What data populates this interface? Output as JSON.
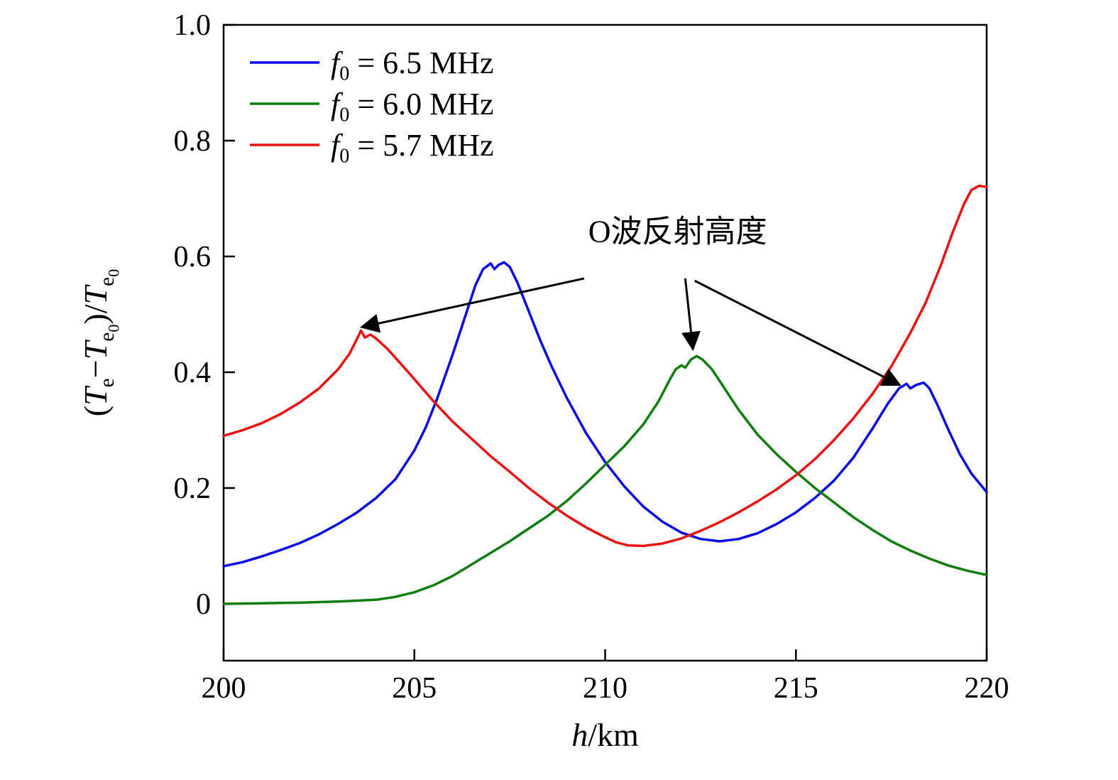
{
  "chart_data": {
    "type": "line",
    "title": "",
    "xlabel_parts": [
      {
        "text": "h",
        "kind": "italic"
      },
      {
        "text": "/km",
        "kind": "normal"
      }
    ],
    "ylabel_parts": [
      {
        "text": "(",
        "kind": "normal"
      },
      {
        "text": "T",
        "kind": "italic"
      },
      {
        "text": "e",
        "kind": "sub"
      },
      {
        "text": "−",
        "kind": "normal"
      },
      {
        "text": "T",
        "kind": "italic"
      },
      {
        "text": "e",
        "kind": "sub"
      },
      {
        "text": "0",
        "kind": "subsub"
      },
      {
        "text": ")/",
        "kind": "normal"
      },
      {
        "text": "T",
        "kind": "italic"
      },
      {
        "text": "e",
        "kind": "sub"
      },
      {
        "text": "0",
        "kind": "subsub"
      }
    ],
    "xlim": [
      200,
      220
    ],
    "ylim": [
      0,
      1.0
    ],
    "xticks": [
      200,
      205,
      210,
      215,
      220
    ],
    "xtick_labels": [
      "200",
      "205",
      "210",
      "215",
      "220"
    ],
    "yticks": [
      0,
      0.2,
      0.4,
      0.6,
      0.8,
      1.0
    ],
    "ytick_labels": [
      "0",
      "0.2",
      "0.4",
      "0.6",
      "0.8",
      "1.0"
    ],
    "grid": false,
    "legend_position": "top-left",
    "series": [
      {
        "name": "f0 = 6.5 MHz",
        "color": "#0a0ae6",
        "label_parts": [
          {
            "text": "f",
            "kind": "italic"
          },
          {
            "text": "0",
            "kind": "sub"
          },
          {
            "text": " = 6.5 MHz",
            "kind": "normal"
          }
        ],
        "points": [
          [
            200,
            0.065
          ],
          [
            200.5,
            0.072
          ],
          [
            201,
            0.082
          ],
          [
            201.5,
            0.093
          ],
          [
            202,
            0.105
          ],
          [
            202.5,
            0.12
          ],
          [
            203,
            0.138
          ],
          [
            203.5,
            0.158
          ],
          [
            204,
            0.183
          ],
          [
            204.5,
            0.215
          ],
          [
            205,
            0.265
          ],
          [
            205.3,
            0.305
          ],
          [
            205.6,
            0.355
          ],
          [
            206,
            0.43
          ],
          [
            206.3,
            0.49
          ],
          [
            206.6,
            0.55
          ],
          [
            206.8,
            0.578
          ],
          [
            207,
            0.588
          ],
          [
            207.1,
            0.578
          ],
          [
            207.2,
            0.585
          ],
          [
            207.35,
            0.59
          ],
          [
            207.5,
            0.582
          ],
          [
            207.7,
            0.555
          ],
          [
            208,
            0.505
          ],
          [
            208.3,
            0.455
          ],
          [
            208.6,
            0.41
          ],
          [
            209,
            0.355
          ],
          [
            209.5,
            0.295
          ],
          [
            210,
            0.245
          ],
          [
            210.5,
            0.203
          ],
          [
            211,
            0.168
          ],
          [
            211.5,
            0.142
          ],
          [
            212,
            0.123
          ],
          [
            212.5,
            0.112
          ],
          [
            213,
            0.108
          ],
          [
            213.5,
            0.112
          ],
          [
            214,
            0.122
          ],
          [
            214.5,
            0.138
          ],
          [
            215,
            0.158
          ],
          [
            215.5,
            0.183
          ],
          [
            216,
            0.213
          ],
          [
            216.5,
            0.252
          ],
          [
            217,
            0.302
          ],
          [
            217.4,
            0.345
          ],
          [
            217.7,
            0.372
          ],
          [
            217.9,
            0.38
          ],
          [
            218,
            0.372
          ],
          [
            218.15,
            0.378
          ],
          [
            218.35,
            0.382
          ],
          [
            218.5,
            0.372
          ],
          [
            218.7,
            0.345
          ],
          [
            219,
            0.3
          ],
          [
            219.3,
            0.258
          ],
          [
            219.6,
            0.225
          ],
          [
            220,
            0.193
          ]
        ]
      },
      {
        "name": "f0 = 6.0 MHz",
        "color": "#0f7d0f",
        "label_parts": [
          {
            "text": "f",
            "kind": "italic"
          },
          {
            "text": "0",
            "kind": "sub"
          },
          {
            "text": " = 6.0 MHz",
            "kind": "normal"
          }
        ],
        "points": [
          [
            200,
            0.0
          ],
          [
            201,
            0.001
          ],
          [
            202,
            0.002
          ],
          [
            203,
            0.004
          ],
          [
            204,
            0.007
          ],
          [
            204.5,
            0.012
          ],
          [
            205,
            0.02
          ],
          [
            205.5,
            0.032
          ],
          [
            206,
            0.048
          ],
          [
            206.5,
            0.068
          ],
          [
            207,
            0.088
          ],
          [
            207.5,
            0.108
          ],
          [
            208,
            0.13
          ],
          [
            208.5,
            0.152
          ],
          [
            209,
            0.178
          ],
          [
            209.5,
            0.208
          ],
          [
            210,
            0.24
          ],
          [
            210.5,
            0.272
          ],
          [
            211,
            0.31
          ],
          [
            211.4,
            0.35
          ],
          [
            211.7,
            0.388
          ],
          [
            211.85,
            0.405
          ],
          [
            212,
            0.412
          ],
          [
            212.1,
            0.408
          ],
          [
            212.25,
            0.422
          ],
          [
            212.4,
            0.428
          ],
          [
            212.55,
            0.422
          ],
          [
            212.8,
            0.405
          ],
          [
            213,
            0.385
          ],
          [
            213.5,
            0.335
          ],
          [
            214,
            0.292
          ],
          [
            214.5,
            0.258
          ],
          [
            215,
            0.228
          ],
          [
            215.5,
            0.2
          ],
          [
            216,
            0.175
          ],
          [
            216.5,
            0.15
          ],
          [
            217,
            0.128
          ],
          [
            217.5,
            0.108
          ],
          [
            218,
            0.092
          ],
          [
            218.5,
            0.078
          ],
          [
            219,
            0.066
          ],
          [
            219.5,
            0.057
          ],
          [
            220,
            0.05
          ]
        ]
      },
      {
        "name": "f0 = 5.7 MHz",
        "color": "#ee1111",
        "label_parts": [
          {
            "text": "f",
            "kind": "italic"
          },
          {
            "text": "0",
            "kind": "sub"
          },
          {
            "text": " = 5.7 MHz",
            "kind": "normal"
          }
        ],
        "points": [
          [
            200,
            0.29
          ],
          [
            200.5,
            0.3
          ],
          [
            201,
            0.312
          ],
          [
            201.5,
            0.328
          ],
          [
            202,
            0.348
          ],
          [
            202.5,
            0.372
          ],
          [
            203,
            0.405
          ],
          [
            203.3,
            0.432
          ],
          [
            203.5,
            0.458
          ],
          [
            203.6,
            0.472
          ],
          [
            203.7,
            0.46
          ],
          [
            203.85,
            0.465
          ],
          [
            204,
            0.458
          ],
          [
            204.3,
            0.44
          ],
          [
            204.6,
            0.418
          ],
          [
            205,
            0.388
          ],
          [
            205.5,
            0.35
          ],
          [
            206,
            0.315
          ],
          [
            206.5,
            0.285
          ],
          [
            207,
            0.255
          ],
          [
            207.5,
            0.228
          ],
          [
            208,
            0.2
          ],
          [
            208.5,
            0.175
          ],
          [
            209,
            0.152
          ],
          [
            209.5,
            0.132
          ],
          [
            210,
            0.115
          ],
          [
            210.3,
            0.106
          ],
          [
            210.6,
            0.101
          ],
          [
            211,
            0.1
          ],
          [
            211.5,
            0.104
          ],
          [
            212,
            0.113
          ],
          [
            212.5,
            0.126
          ],
          [
            213,
            0.141
          ],
          [
            213.5,
            0.158
          ],
          [
            214,
            0.177
          ],
          [
            214.5,
            0.198
          ],
          [
            215,
            0.222
          ],
          [
            215.5,
            0.25
          ],
          [
            216,
            0.283
          ],
          [
            216.5,
            0.32
          ],
          [
            217,
            0.362
          ],
          [
            217.5,
            0.41
          ],
          [
            218,
            0.468
          ],
          [
            218.4,
            0.52
          ],
          [
            218.8,
            0.585
          ],
          [
            219.1,
            0.64
          ],
          [
            219.4,
            0.69
          ],
          [
            219.6,
            0.715
          ],
          [
            219.8,
            0.722
          ],
          [
            220,
            0.72
          ]
        ]
      }
    ],
    "annotation": {
      "text": "O波反射高度",
      "x": 211.9,
      "y": 0.625,
      "arrows": [
        {
          "from": [
            209.45,
            0.562
          ],
          "to": [
            203.62,
            0.478
          ]
        },
        {
          "from": [
            212.1,
            0.562
          ],
          "to": [
            212.3,
            0.44
          ]
        },
        {
          "from": [
            212.35,
            0.558
          ],
          "to": [
            217.72,
            0.378
          ]
        }
      ]
    }
  }
}
